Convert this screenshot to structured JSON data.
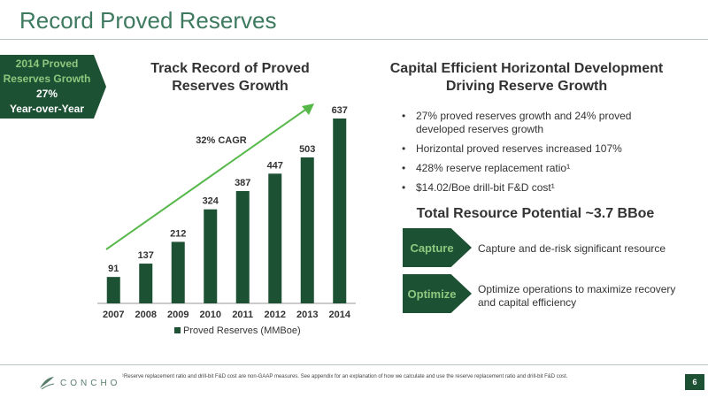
{
  "page": {
    "title": "Record Proved Reserves",
    "page_number": "6"
  },
  "callout": {
    "line1": "2014 Proved",
    "line2": "Reserves Growth",
    "pct": "27%",
    "line3": "Year-over-Year"
  },
  "chart_data": {
    "type": "bar",
    "title": "Track Record of Proved Reserves Growth",
    "categories": [
      "2007",
      "2008",
      "2009",
      "2010",
      "2011",
      "2012",
      "2013",
      "2014"
    ],
    "series": [
      {
        "name": "Proved Reserves (MMBoe)",
        "values": [
          91,
          137,
          212,
          324,
          387,
          447,
          503,
          637
        ]
      }
    ],
    "annotation": "32% CAGR",
    "ylim": [
      0,
      637
    ],
    "grid": false,
    "legend": "bottom",
    "colors": {
      "bar": "#1d5134",
      "trend": "#55b848"
    }
  },
  "right": {
    "heading": "Capital Efficient Horizontal Development Driving Reserve Growth",
    "bullets": [
      "27% proved reserves growth and 24% proved developed reserves growth",
      "Horizontal proved reserves increased 107%",
      "428% reserve replacement ratio¹",
      "$14.02/Boe drill-bit F&D cost¹"
    ],
    "resource_title": "Total Resource Potential  ~3.7 BBoe",
    "capture": {
      "label": "Capture",
      "desc": "Capture and de-risk significant resource"
    },
    "optimize": {
      "label": "Optimize",
      "desc": "Optimize operations to maximize recovery and capital efficiency"
    }
  },
  "footer": {
    "logo_text": "CONCHO",
    "footnote": "¹Reserve replacement ratio and drill-bit F&D cost are non-GAAP measures. See appendix for an explanation of how we calculate and use the reserve replacement ratio and drill-bit F&D cost."
  },
  "colors": {
    "accent": "#3d7a5f",
    "dark": "#1d5134",
    "light_green": "#8fc77e"
  }
}
